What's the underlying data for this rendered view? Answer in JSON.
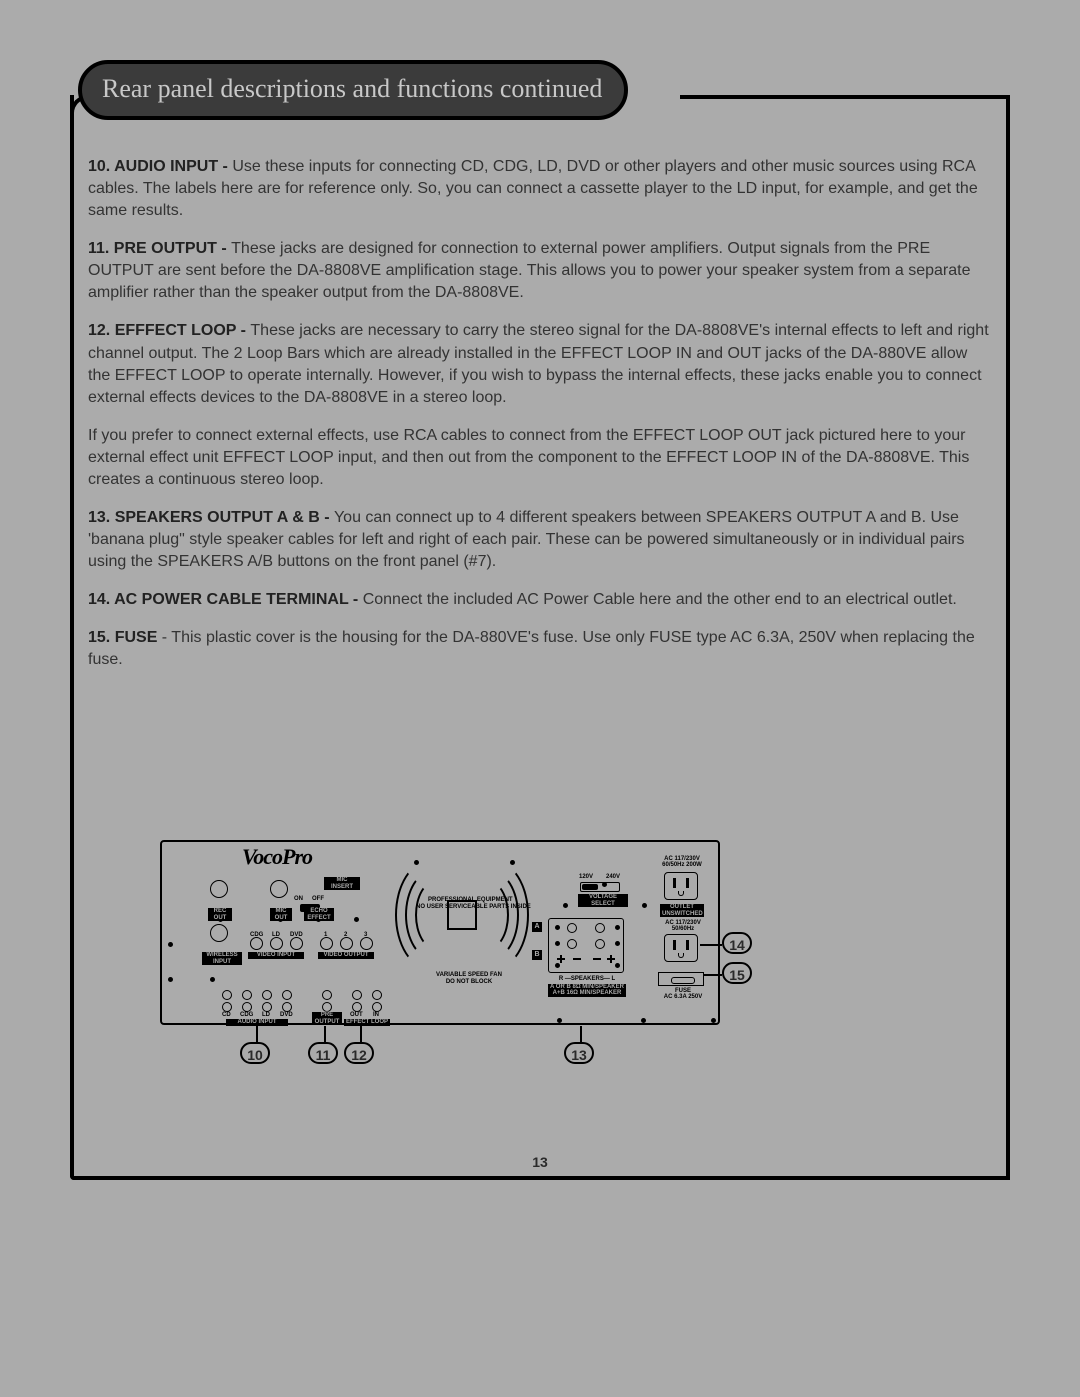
{
  "title": "Rear panel descriptions and functions continued",
  "page_number": "13",
  "colors": {
    "page_bg": "#ababab",
    "pill_bg": "#3b3b3b",
    "pill_fg": "#c8c8c8",
    "text": "#333333",
    "line": "#000000"
  },
  "items": [
    {
      "heading": "10. AUDIO INPUT - ",
      "body": "Use these inputs for connecting CD, CDG, LD, DVD or other players and other music sources using RCA cables.  The labels here are for reference only.  So, you can connect a cassette player to the LD input, for example, and get the same results."
    },
    {
      "heading": "11. PRE OUTPUT - ",
      "body": "These jacks are designed for connection to external power amplifiers.  Output signals from the PRE OUTPUT are sent before the DA-8808VE amplification stage.  This allows you to power your speaker system from a separate amplifier rather than the speaker output from the DA-8808VE."
    },
    {
      "heading": "12. EFFFECT LOOP - ",
      "body": "These jacks are necessary to carry the stereo signal for the DA-8808VE's internal effects to left and right channel output.  The 2 Loop Bars which are already installed in the EFFECT LOOP IN and OUT jacks of the DA-880VE allow the EFFECT LOOP to operate internally.  However, if you wish to bypass the internal effects, these jacks enable you to connect external effects devices to the DA-8808VE in a stereo loop."
    },
    {
      "heading": "",
      "body": "If you prefer to connect external effects, use RCA cables to connect from the EFFECT LOOP OUT jack pictured here to your external effect unit EFFECT LOOP input, and then out from the component to the EFFECT LOOP IN of the DA-8808VE.  This creates a continuous stereo loop."
    },
    {
      "heading": "13. SPEAKERS OUTPUT A & B - ",
      "body": "You can connect up to 4 different speakers between SPEAKERS OUTPUT A and B.  Use 'banana plug\" style speaker cables for left and right of each pair.  These can be powered simultaneously or in individual pairs using the SPEAKERS A/B buttons on the front panel (#7)."
    },
    {
      "heading": "14. AC POWER CABLE TERMINAL - ",
      "body": "Connect the included AC Power Cable here and the other end to an electrical outlet."
    },
    {
      "heading": "15. FUSE",
      "body": " - This plastic cover is the housing for the DA-880VE's fuse.  Use only FUSE type AC 6.3A, 250V when replacing the fuse."
    }
  ],
  "diagram": {
    "brand": "VocoPro",
    "prof_line1": "PROFESSIONAL EQUIPMENT",
    "prof_line2": "NO USER SERVICEABLE PARTS INSIDE",
    "fan_line1": "VARIABLE SPEED FAN",
    "fan_line2": "DO NOT BLOCK",
    "mic_insert": "MIC\nINSERT",
    "on": "ON",
    "off": "OFF",
    "rec_out": "REC\nOUT",
    "mic_out": "MIC\nOUT",
    "echo_effect": "ECHO\nEFFECT",
    "wireless_input": "WIRELESS\nINPUT",
    "cdg": "CDG",
    "ld": "LD",
    "dvd": "DVD",
    "video_input": "VIDEO INPUT",
    "video_output": "VIDEO OUTPUT",
    "v1": "1",
    "v2": "2",
    "v3": "3",
    "cd": "CD",
    "audio_input": "AUDIO INPUT",
    "pre_output": "PRE\nOUTPUT",
    "eff_out": "OUT",
    "eff_in": "IN",
    "effect_loop": "EFFECT LOOP",
    "voltage_select": "VOLTAGE SELECT",
    "v120": "120V",
    "v240": "240V",
    "speakers": "R —SPEAKERS— L",
    "spk_imp": "A OR B 8Ω MIN/SPEAKER\nA+B 16Ω MIN/SPEAKER",
    "ac_label_top": "AC 117/230V\n60/50Hz 200W",
    "outlet_unswitched": "OUTLET\nUNSWITCHED",
    "ac_label_mid": "AC 117/230V\n50/60Hz",
    "fuse": "FUSE\nAC 6.3A 250V",
    "callouts": {
      "c10": "10",
      "c11": "11",
      "c12": "12",
      "c13": "13",
      "c14": "14",
      "c15": "15"
    }
  }
}
